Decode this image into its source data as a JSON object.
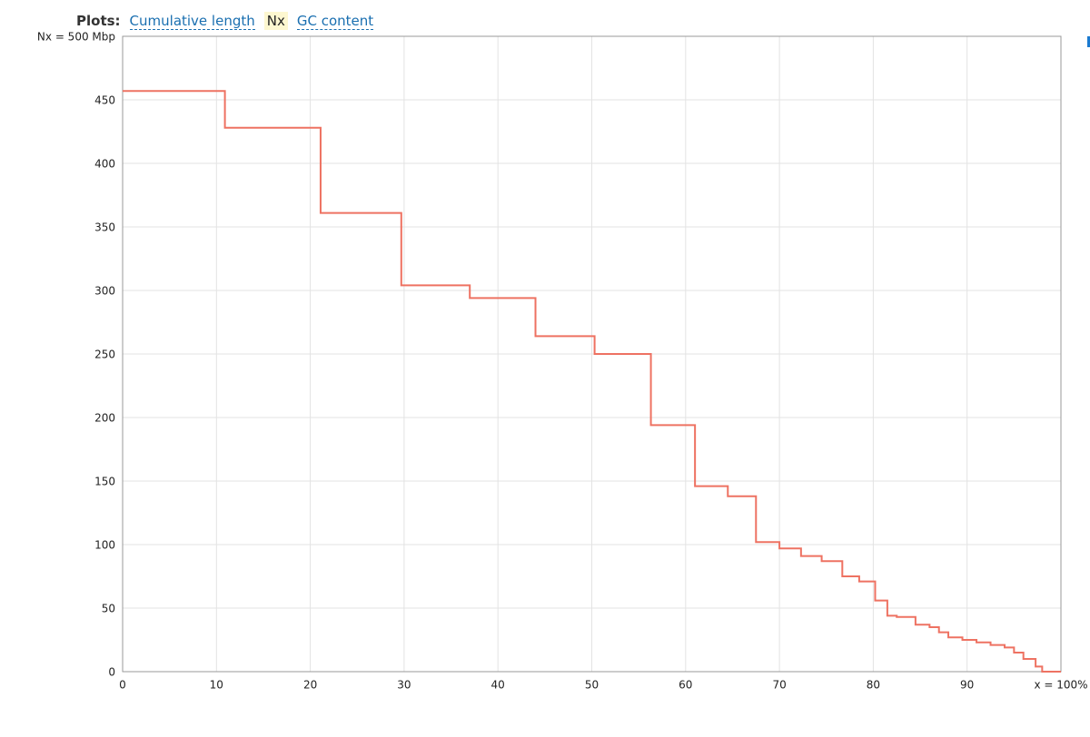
{
  "tabs": {
    "label": "Plots:",
    "items": [
      "Cumulative length",
      "Nx",
      "GC content"
    ],
    "selected": 1
  },
  "chart_data": {
    "type": "line",
    "x": [
      0,
      10.9,
      10.9,
      21.1,
      21.1,
      29.7,
      29.7,
      37,
      37,
      44,
      44,
      50.3,
      50.3,
      56.3,
      56.3,
      61,
      61,
      64.5,
      64.5,
      67.5,
      67.5,
      70,
      70,
      72.3,
      72.3,
      74.5,
      74.5,
      76.7,
      76.7,
      78.5,
      78.5,
      80.2,
      80.2,
      81.5,
      81.5,
      82.5,
      82.5,
      84.5,
      84.5,
      86,
      86,
      87,
      87,
      88,
      88,
      89.5,
      89.5,
      91,
      91,
      92.5,
      92.5,
      94,
      94,
      95,
      95,
      96,
      96,
      97.3,
      97.3,
      98,
      98,
      100
    ],
    "values": [
      457,
      457,
      428,
      428,
      361,
      361,
      304,
      304,
      294,
      294,
      264,
      264,
      250,
      250,
      194,
      194,
      146,
      146,
      138,
      138,
      102,
      102,
      97,
      97,
      91,
      91,
      87,
      87,
      75,
      75,
      71,
      71,
      56,
      56,
      44,
      44,
      43,
      43,
      37,
      37,
      35,
      35,
      31,
      31,
      27,
      27,
      25,
      25,
      23,
      23,
      21,
      21,
      19,
      19,
      15,
      15,
      10,
      10,
      4,
      4,
      0,
      0
    ],
    "color": "#ee7262",
    "xlim": [
      0,
      100
    ],
    "xticks": [
      0,
      10,
      20,
      30,
      40,
      50,
      60,
      70,
      80,
      90,
      {
        "value": 100,
        "label": "x = 100%"
      }
    ],
    "ylim": [
      0,
      500
    ],
    "yticks": [
      0,
      50,
      100,
      150,
      200,
      250,
      300,
      350,
      400,
      450,
      {
        "value": 500,
        "label": "Nx = 500 Mbp"
      }
    ],
    "grid": true
  }
}
